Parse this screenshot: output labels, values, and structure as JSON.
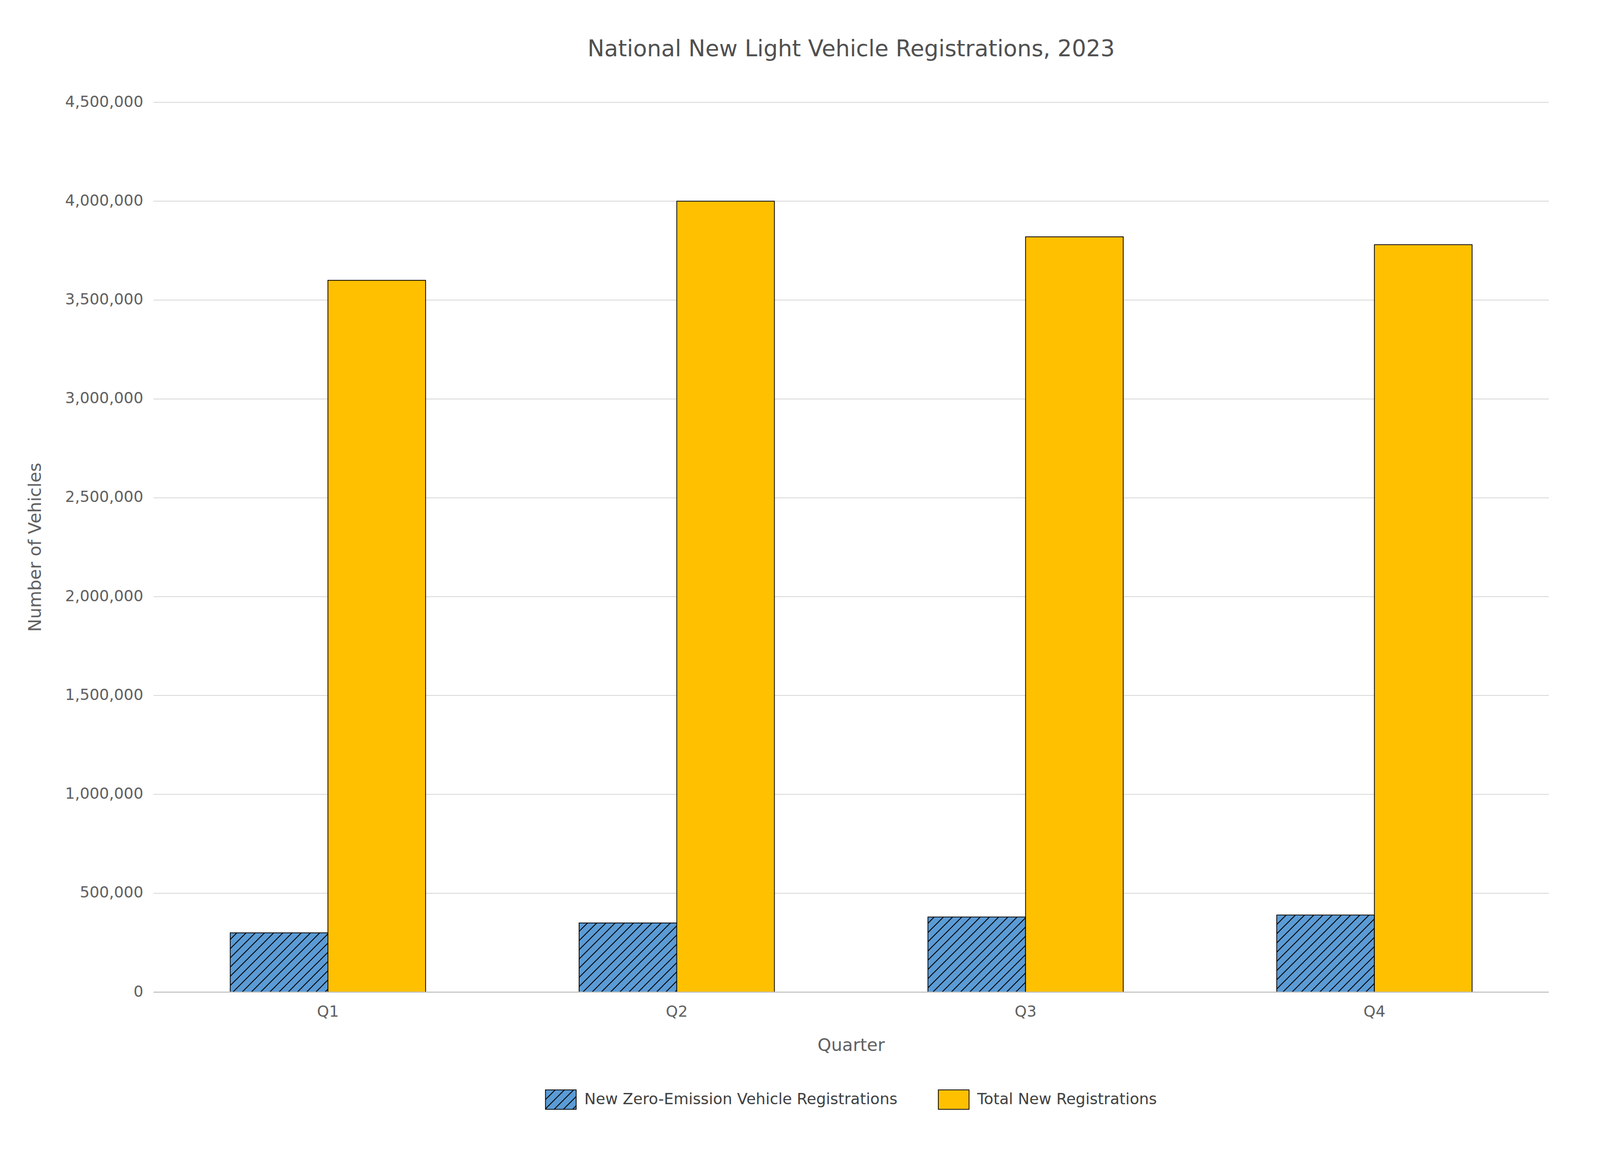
{
  "chart_data": {
    "type": "bar",
    "title": "National New Light Vehicle Registrations, 2023",
    "xlabel": "Quarter",
    "ylabel": "Number of Vehicles",
    "categories": [
      "Q1",
      "Q2",
      "Q3",
      "Q4"
    ],
    "series": [
      {
        "name": "New Zero-Emission Vehicle Registrations",
        "color": "#5B9BD5",
        "values": [
          300000,
          350000,
          380000,
          390000
        ]
      },
      {
        "name": "Total New Registrations",
        "color": "#FFC000",
        "values": [
          3600000,
          4000000,
          3820000,
          3780000
        ]
      }
    ],
    "ylim": [
      0,
      4500000
    ],
    "yticks": [
      0,
      {
        "value": 500000,
        "label": "500,000"
      },
      {
        "value": 1000000,
        "label": "1,000,000"
      },
      {
        "value": 1500000,
        "label": "1,500,000"
      },
      {
        "value": 2000000,
        "label": "2,000,000"
      },
      {
        "value": 2500000,
        "label": "2,500,000"
      },
      {
        "value": 3000000,
        "label": "3,000,000"
      },
      {
        "value": 3500000,
        "label": "3,500,000"
      },
      {
        "value": 4000000,
        "label": "4,000,000"
      },
      {
        "value": 4500000,
        "label": "4,500,000"
      }
    ],
    "grid": true,
    "legend": "bottom"
  }
}
